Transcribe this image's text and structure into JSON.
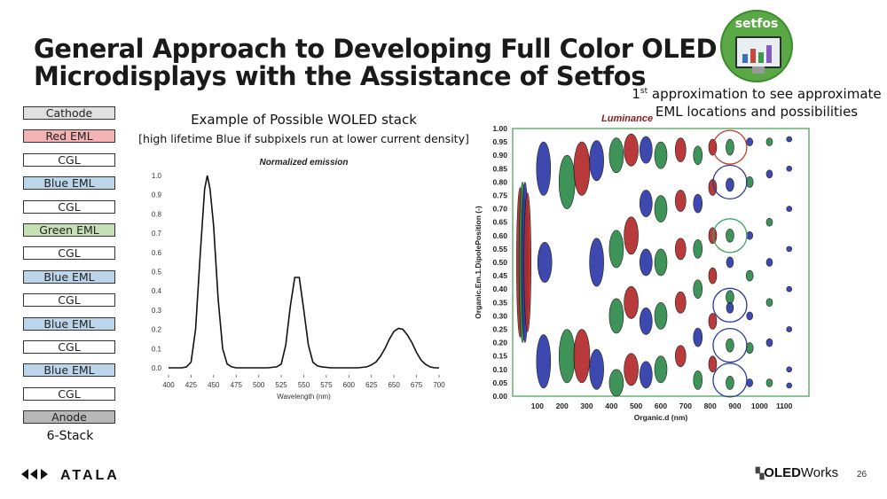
{
  "title": {
    "line1": "General Approach to Developing Full Color OLED",
    "line2": "Microdisplays with the Assistance of Setfos"
  },
  "badge": {
    "name": "setfos"
  },
  "note": {
    "sup_prefix": "1",
    "sup": "st",
    "text_a": " approximation to see approximate",
    "text_b": "EML locations and possibilities"
  },
  "stack": {
    "caption": "6-Stack",
    "layers": [
      {
        "label": "Cathode",
        "color": "#e0e0e0"
      },
      {
        "label": "Red EML",
        "color": "#f4b4b4"
      },
      {
        "label": "CGL",
        "color": "#ffffff"
      },
      {
        "label": "Blue EML",
        "color": "#bcd5ea"
      },
      {
        "label": "CGL",
        "color": "#ffffff"
      },
      {
        "label": "Green EML",
        "color": "#c5e0b4"
      },
      {
        "label": "CGL",
        "color": "#ffffff"
      },
      {
        "label": "Blue EML",
        "color": "#bcd5ea"
      },
      {
        "label": "CGL",
        "color": "#ffffff"
      },
      {
        "label": "Blue EML",
        "color": "#bcd5ea"
      },
      {
        "label": "CGL",
        "color": "#ffffff"
      },
      {
        "label": "Blue EML",
        "color": "#bcd5ea"
      },
      {
        "label": "CGL",
        "color": "#ffffff"
      },
      {
        "label": "Anode",
        "color": "#b8b8b8"
      }
    ]
  },
  "example": {
    "title": "Example of Possible WOLED stack",
    "subtitle": "[high lifetime Blue if subpixels run at lower current density]"
  },
  "chart_data": [
    {
      "type": "line",
      "title": "Normalized emission",
      "xlabel": "Wavelength (nm)",
      "ylabel": "",
      "xlim": [
        400,
        700
      ],
      "ylim": [
        0,
        1.0
      ],
      "xticks": [
        400,
        425,
        450,
        475,
        500,
        525,
        550,
        575,
        600,
        625,
        650,
        675,
        700
      ],
      "yticks": [
        "0.0",
        "0.1",
        "0.2",
        "0.3",
        "0.4",
        "0.5",
        "0.6",
        "0.7",
        "0.8",
        "0.9",
        "1.0"
      ],
      "series": [
        {
          "name": "emission",
          "x": [
            400,
            405,
            410,
            415,
            420,
            425,
            430,
            435,
            440,
            443,
            446,
            450,
            455,
            460,
            465,
            470,
            475,
            480,
            490,
            500,
            510,
            520,
            525,
            530,
            535,
            540,
            545,
            550,
            555,
            560,
            565,
            570,
            580,
            590,
            600,
            610,
            620,
            625,
            630,
            635,
            640,
            645,
            650,
            655,
            660,
            665,
            670,
            675,
            680,
            685,
            690,
            695,
            700
          ],
          "y": [
            0.0,
            0.0,
            0.0,
            0.0,
            0.005,
            0.03,
            0.2,
            0.58,
            0.93,
            1.0,
            0.93,
            0.74,
            0.36,
            0.1,
            0.02,
            0.005,
            0.0,
            0.0,
            0.0,
            0.0,
            0.0,
            0.005,
            0.02,
            0.12,
            0.32,
            0.47,
            0.47,
            0.3,
            0.12,
            0.03,
            0.01,
            0.005,
            0.0,
            0.0,
            0.0,
            0.0,
            0.005,
            0.015,
            0.03,
            0.06,
            0.1,
            0.15,
            0.19,
            0.205,
            0.2,
            0.17,
            0.13,
            0.08,
            0.04,
            0.018,
            0.005,
            0.0,
            0.0
          ]
        }
      ]
    },
    {
      "type": "scatter",
      "title": "Luminance",
      "xlabel": "Organic.d (nm)",
      "ylabel": "Organic.Em.1.DipolePosition (-)",
      "xticks": [
        "100",
        "200",
        "300",
        "400",
        "500",
        "600",
        "700",
        "800",
        "900",
        "1000",
        "1100"
      ],
      "yticks": [
        "0.00",
        "0.05",
        "0.10",
        "0.15",
        "0.20",
        "0.25",
        "0.30",
        "0.35",
        "0.40",
        "0.45",
        "0.50",
        "0.55",
        "0.60",
        "0.65",
        "0.70",
        "0.75",
        "0.80",
        "0.85",
        "0.90",
        "0.95",
        "1.00"
      ],
      "xlim": [
        0,
        1200
      ],
      "ylim": [
        0,
        1.0
      ],
      "colors": {
        "red": "#b22a2a",
        "green": "#2e8b4a",
        "blue": "#2d3aa8"
      },
      "blobs": [
        {
          "d": 30,
          "p": 0.5,
          "c": "red",
          "h": 0.56,
          "w": 8
        },
        {
          "d": 40,
          "p": 0.5,
          "c": "green",
          "h": 0.6,
          "w": 8
        },
        {
          "d": 50,
          "p": 0.5,
          "c": "blue",
          "h": 0.6,
          "w": 8
        },
        {
          "d": 60,
          "p": 0.5,
          "c": "red",
          "h": 0.52,
          "w": 8
        },
        {
          "d": 125,
          "p": 0.85,
          "c": "blue",
          "h": 0.2,
          "w": 16
        },
        {
          "d": 130,
          "p": 0.5,
          "c": "blue",
          "h": 0.15,
          "w": 16
        },
        {
          "d": 125,
          "p": 0.13,
          "c": "blue",
          "h": 0.2,
          "w": 16
        },
        {
          "d": 220,
          "p": 0.8,
          "c": "green",
          "h": 0.2,
          "w": 18
        },
        {
          "d": 220,
          "p": 0.15,
          "c": "green",
          "h": 0.2,
          "w": 18
        },
        {
          "d": 280,
          "p": 0.85,
          "c": "red",
          "h": 0.2,
          "w": 18
        },
        {
          "d": 280,
          "p": 0.15,
          "c": "red",
          "h": 0.2,
          "w": 18
        },
        {
          "d": 340,
          "p": 0.88,
          "c": "blue",
          "h": 0.15,
          "w": 16
        },
        {
          "d": 340,
          "p": 0.5,
          "c": "blue",
          "h": 0.18,
          "w": 16
        },
        {
          "d": 340,
          "p": 0.1,
          "c": "blue",
          "h": 0.15,
          "w": 16
        },
        {
          "d": 420,
          "p": 0.9,
          "c": "green",
          "h": 0.13,
          "w": 16
        },
        {
          "d": 420,
          "p": 0.55,
          "c": "green",
          "h": 0.14,
          "w": 16
        },
        {
          "d": 420,
          "p": 0.3,
          "c": "green",
          "h": 0.13,
          "w": 16
        },
        {
          "d": 420,
          "p": 0.05,
          "c": "green",
          "h": 0.1,
          "w": 16
        },
        {
          "d": 480,
          "p": 0.92,
          "c": "red",
          "h": 0.12,
          "w": 16
        },
        {
          "d": 480,
          "p": 0.6,
          "c": "red",
          "h": 0.14,
          "w": 16
        },
        {
          "d": 480,
          "p": 0.35,
          "c": "red",
          "h": 0.12,
          "w": 16
        },
        {
          "d": 480,
          "p": 0.1,
          "c": "red",
          "h": 0.12,
          "w": 16
        },
        {
          "d": 540,
          "p": 0.92,
          "c": "blue",
          "h": 0.1,
          "w": 14
        },
        {
          "d": 540,
          "p": 0.72,
          "c": "blue",
          "h": 0.1,
          "w": 14
        },
        {
          "d": 540,
          "p": 0.5,
          "c": "blue",
          "h": 0.1,
          "w": 14
        },
        {
          "d": 540,
          "p": 0.28,
          "c": "blue",
          "h": 0.1,
          "w": 14
        },
        {
          "d": 540,
          "p": 0.08,
          "c": "blue",
          "h": 0.1,
          "w": 14
        },
        {
          "d": 600,
          "p": 0.9,
          "c": "green",
          "h": 0.1,
          "w": 14
        },
        {
          "d": 600,
          "p": 0.7,
          "c": "green",
          "h": 0.1,
          "w": 14
        },
        {
          "d": 600,
          "p": 0.5,
          "c": "green",
          "h": 0.1,
          "w": 14
        },
        {
          "d": 600,
          "p": 0.3,
          "c": "green",
          "h": 0.1,
          "w": 14
        },
        {
          "d": 600,
          "p": 0.1,
          "c": "green",
          "h": 0.1,
          "w": 14
        },
        {
          "d": 680,
          "p": 0.92,
          "c": "red",
          "h": 0.09,
          "w": 12
        },
        {
          "d": 680,
          "p": 0.73,
          "c": "red",
          "h": 0.08,
          "w": 12
        },
        {
          "d": 680,
          "p": 0.55,
          "c": "red",
          "h": 0.08,
          "w": 12
        },
        {
          "d": 680,
          "p": 0.35,
          "c": "red",
          "h": 0.08,
          "w": 12
        },
        {
          "d": 680,
          "p": 0.15,
          "c": "red",
          "h": 0.08,
          "w": 12
        },
        {
          "d": 750,
          "p": 0.9,
          "c": "green",
          "h": 0.07,
          "w": 10
        },
        {
          "d": 750,
          "p": 0.72,
          "c": "blue",
          "h": 0.07,
          "w": 10
        },
        {
          "d": 750,
          "p": 0.55,
          "c": "green",
          "h": 0.07,
          "w": 10
        },
        {
          "d": 750,
          "p": 0.4,
          "c": "green",
          "h": 0.07,
          "w": 10
        },
        {
          "d": 750,
          "p": 0.22,
          "c": "blue",
          "h": 0.07,
          "w": 10
        },
        {
          "d": 750,
          "p": 0.06,
          "c": "green",
          "h": 0.07,
          "w": 10
        },
        {
          "d": 810,
          "p": 0.93,
          "c": "red",
          "h": 0.06,
          "w": 9
        },
        {
          "d": 810,
          "p": 0.78,
          "c": "red",
          "h": 0.06,
          "w": 9
        },
        {
          "d": 810,
          "p": 0.6,
          "c": "red",
          "h": 0.06,
          "w": 9
        },
        {
          "d": 810,
          "p": 0.45,
          "c": "red",
          "h": 0.06,
          "w": 9
        },
        {
          "d": 810,
          "p": 0.28,
          "c": "red",
          "h": 0.06,
          "w": 9
        },
        {
          "d": 810,
          "p": 0.12,
          "c": "red",
          "h": 0.06,
          "w": 9
        },
        {
          "d": 880,
          "p": 0.93,
          "c": "green",
          "h": 0.06,
          "w": 9
        },
        {
          "d": 880,
          "p": 0.79,
          "c": "blue",
          "h": 0.05,
          "w": 9
        },
        {
          "d": 880,
          "p": 0.6,
          "c": "green",
          "h": 0.05,
          "w": 9
        },
        {
          "d": 880,
          "p": 0.5,
          "c": "blue",
          "h": 0.04,
          "w": 8
        },
        {
          "d": 880,
          "p": 0.37,
          "c": "green",
          "h": 0.05,
          "w": 9
        },
        {
          "d": 880,
          "p": 0.33,
          "c": "blue",
          "h": 0.04,
          "w": 8
        },
        {
          "d": 880,
          "p": 0.19,
          "c": "green",
          "h": 0.05,
          "w": 9
        },
        {
          "d": 880,
          "p": 0.05,
          "c": "green",
          "h": 0.05,
          "w": 9
        },
        {
          "d": 960,
          "p": 0.95,
          "c": "blue",
          "h": 0.03,
          "w": 7
        },
        {
          "d": 960,
          "p": 0.8,
          "c": "green",
          "h": 0.04,
          "w": 8
        },
        {
          "d": 960,
          "p": 0.6,
          "c": "blue",
          "h": 0.03,
          "w": 7
        },
        {
          "d": 960,
          "p": 0.45,
          "c": "green",
          "h": 0.04,
          "w": 8
        },
        {
          "d": 960,
          "p": 0.3,
          "c": "blue",
          "h": 0.03,
          "w": 7
        },
        {
          "d": 960,
          "p": 0.18,
          "c": "green",
          "h": 0.04,
          "w": 8
        },
        {
          "d": 960,
          "p": 0.05,
          "c": "blue",
          "h": 0.03,
          "w": 7
        },
        {
          "d": 1040,
          "p": 0.95,
          "c": "green",
          "h": 0.03,
          "w": 7
        },
        {
          "d": 1040,
          "p": 0.83,
          "c": "blue",
          "h": 0.03,
          "w": 7
        },
        {
          "d": 1040,
          "p": 0.65,
          "c": "green",
          "h": 0.03,
          "w": 7
        },
        {
          "d": 1040,
          "p": 0.5,
          "c": "blue",
          "h": 0.03,
          "w": 7
        },
        {
          "d": 1040,
          "p": 0.35,
          "c": "green",
          "h": 0.03,
          "w": 7
        },
        {
          "d": 1040,
          "p": 0.2,
          "c": "blue",
          "h": 0.03,
          "w": 7
        },
        {
          "d": 1040,
          "p": 0.05,
          "c": "green",
          "h": 0.03,
          "w": 7
        },
        {
          "d": 1120,
          "p": 0.96,
          "c": "blue",
          "h": 0.02,
          "w": 6
        },
        {
          "d": 1120,
          "p": 0.85,
          "c": "blue",
          "h": 0.02,
          "w": 6
        },
        {
          "d": 1120,
          "p": 0.7,
          "c": "blue",
          "h": 0.02,
          "w": 6
        },
        {
          "d": 1120,
          "p": 0.55,
          "c": "blue",
          "h": 0.02,
          "w": 6
        },
        {
          "d": 1120,
          "p": 0.4,
          "c": "blue",
          "h": 0.02,
          "w": 6
        },
        {
          "d": 1120,
          "p": 0.25,
          "c": "blue",
          "h": 0.02,
          "w": 6
        },
        {
          "d": 1120,
          "p": 0.1,
          "c": "blue",
          "h": 0.02,
          "w": 6
        },
        {
          "d": 1120,
          "p": 0.04,
          "c": "blue",
          "h": 0.02,
          "w": 6
        }
      ],
      "highlight_circles": [
        {
          "d": 880,
          "p": 0.93,
          "color": "#c0392b"
        },
        {
          "d": 880,
          "p": 0.8,
          "color": "#2b3a9a"
        },
        {
          "d": 880,
          "p": 0.6,
          "color": "#3aa55a"
        },
        {
          "d": 880,
          "p": 0.34,
          "color": "#2b3a9a"
        },
        {
          "d": 880,
          "p": 0.19,
          "color": "#2b3a9a"
        },
        {
          "d": 880,
          "p": 0.06,
          "color": "#2b3a9a"
        }
      ]
    }
  ],
  "footer": {
    "left_logo": "ATALA",
    "right_logo_a": "OLED",
    "right_logo_b": "Works",
    "page_number": "26"
  }
}
